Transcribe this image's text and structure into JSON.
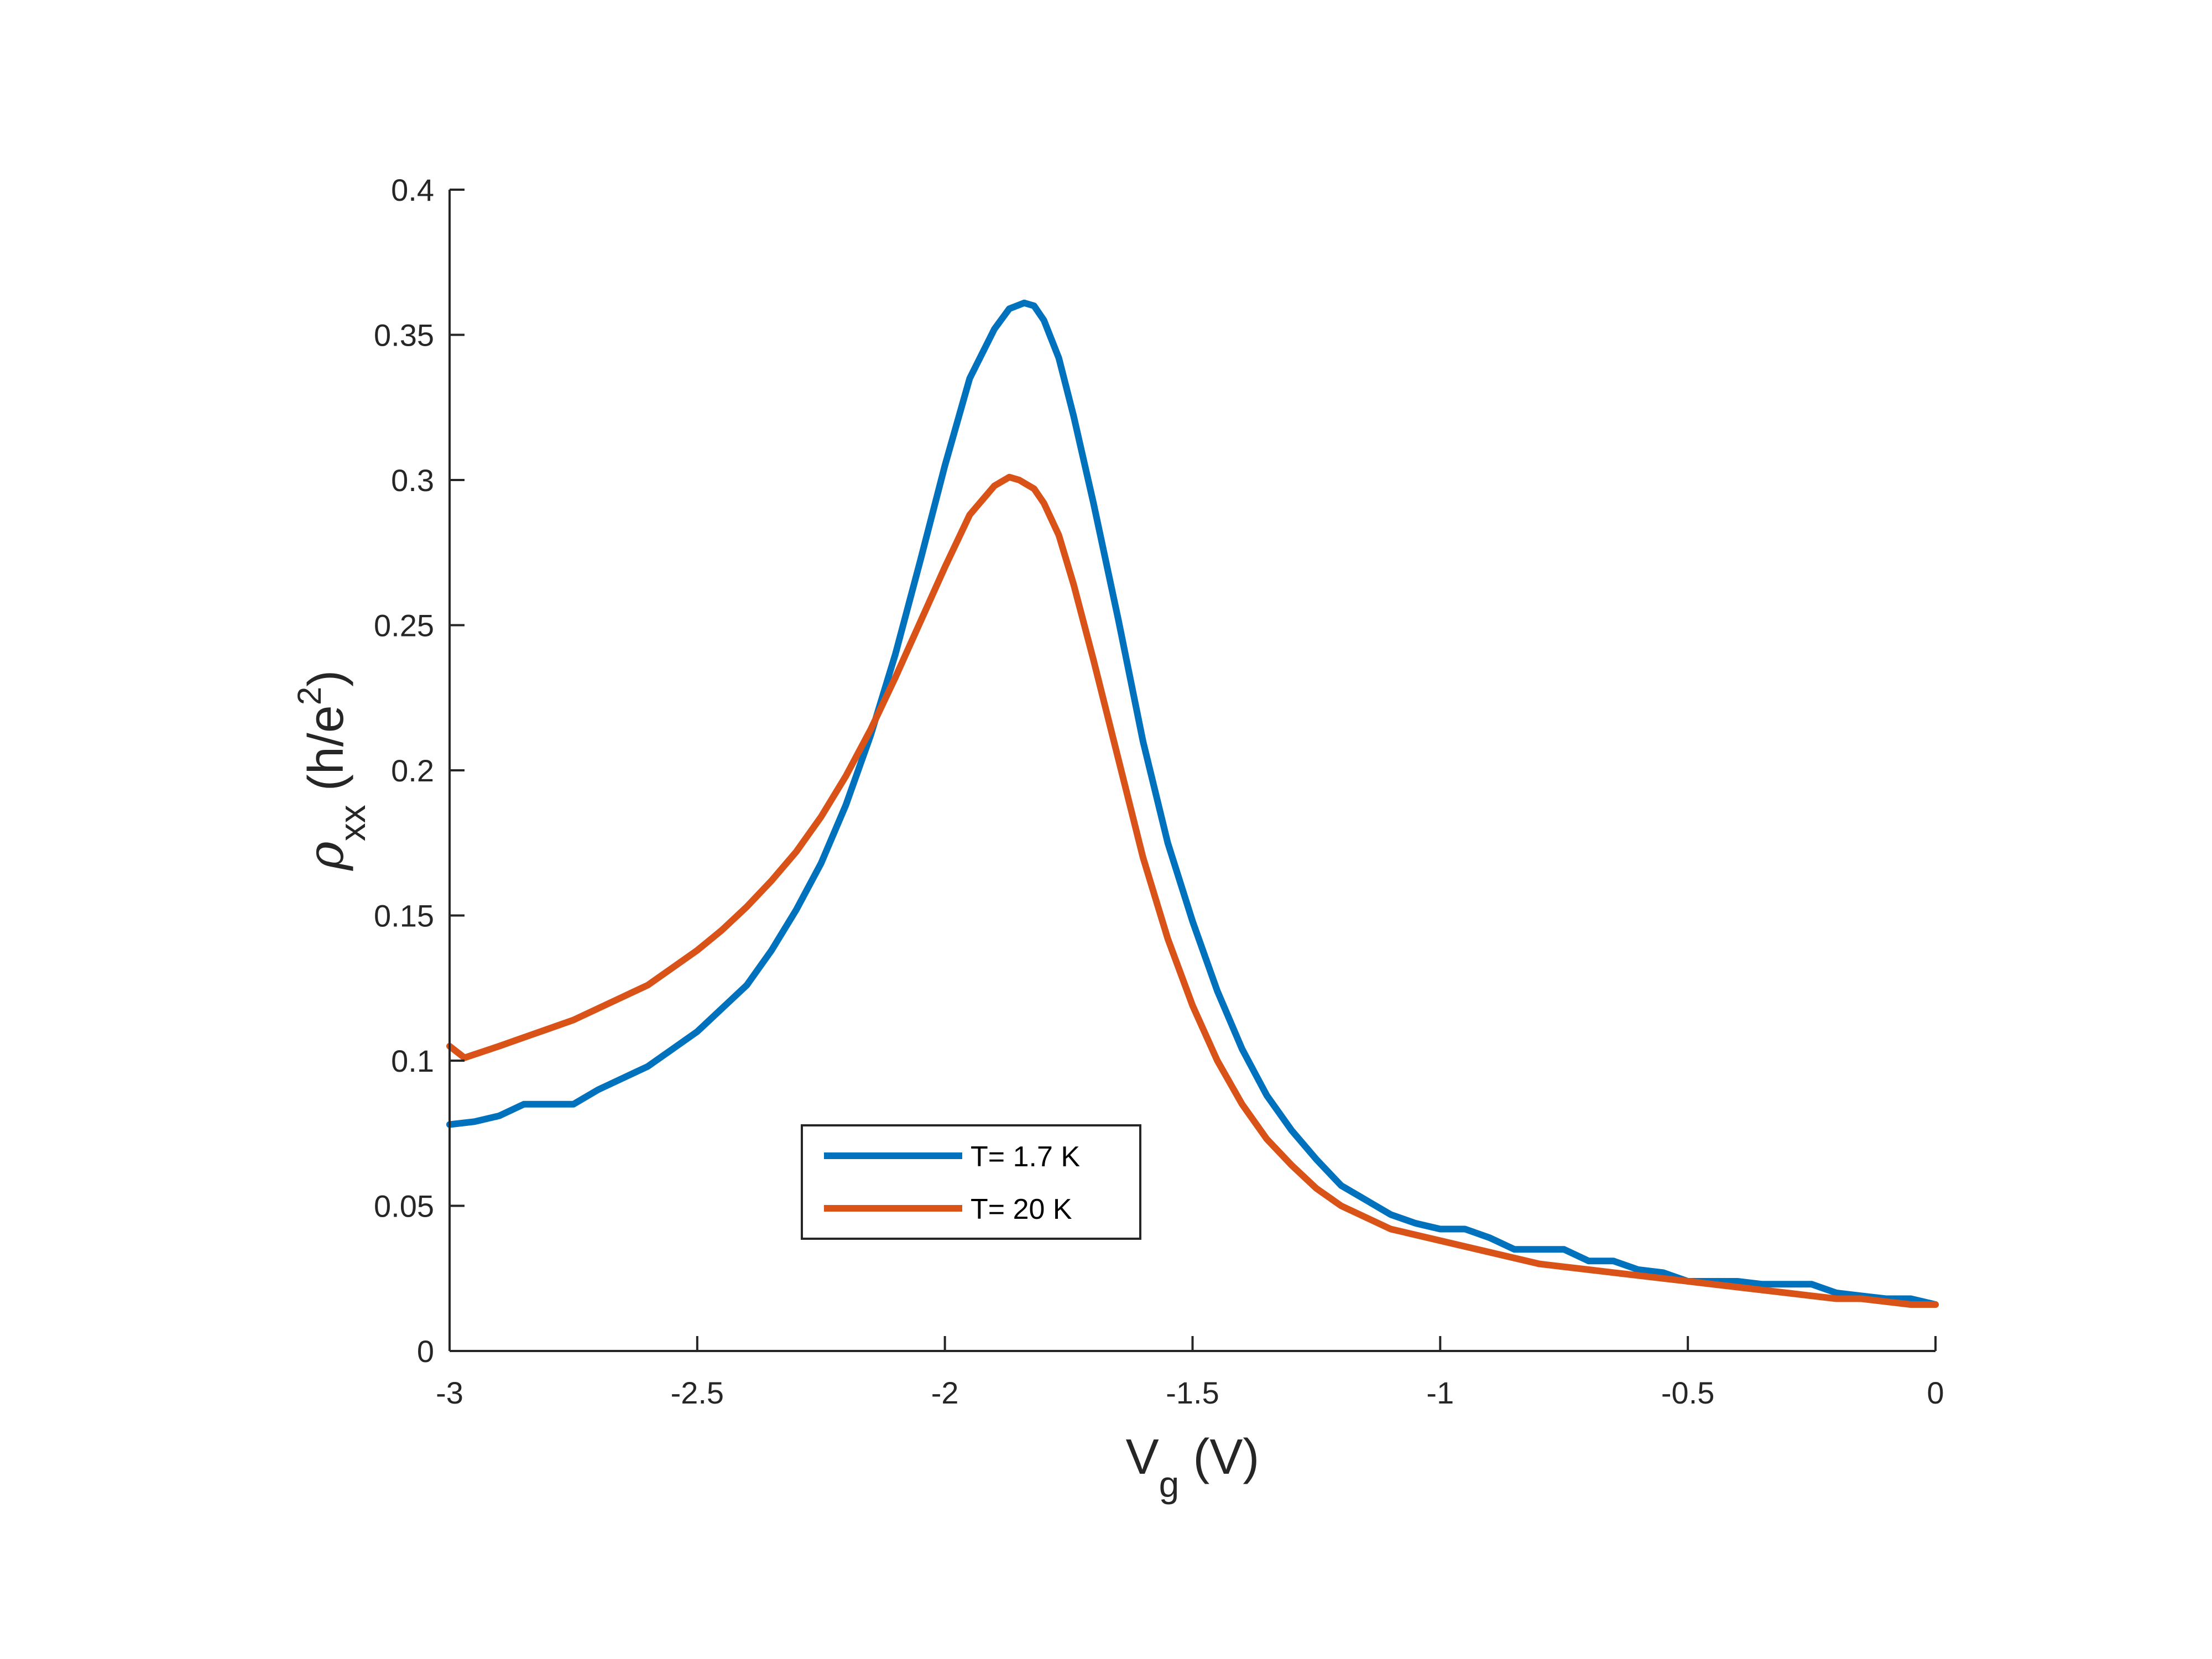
{
  "chart_data": {
    "type": "line",
    "title": "",
    "xlabel": {
      "main": "V",
      "sub": "g",
      "unit": "(V)"
    },
    "ylabel": {
      "symbol": "ρ",
      "sub": "xx",
      "unit_pre": "(h/e",
      "unit_sup": "2",
      "unit_post": ")"
    },
    "xlim": [
      -3,
      0
    ],
    "ylim": [
      0,
      0.4
    ],
    "xticks": [
      -3,
      -2.5,
      -2,
      -1.5,
      -1,
      -0.5,
      0
    ],
    "xtick_labels": [
      "-3",
      "-2.5",
      "-2",
      "-1.5",
      "-1",
      "-0.5",
      "0"
    ],
    "yticks": [
      0,
      0.05,
      0.1,
      0.15,
      0.2,
      0.25,
      0.3,
      0.35,
      0.4
    ],
    "ytick_labels": [
      "0",
      "0.05",
      "0.1",
      "0.15",
      "0.2",
      "0.25",
      "0.3",
      "0.35",
      "0.4"
    ],
    "grid": false,
    "legend_position": "inside-lower-middle",
    "series": [
      {
        "name": "T= 1.7 K",
        "color": "#0072BD",
        "x": [
          -3.0,
          -2.95,
          -2.9,
          -2.85,
          -2.8,
          -2.75,
          -2.7,
          -2.65,
          -2.6,
          -2.55,
          -2.5,
          -2.45,
          -2.4,
          -2.35,
          -2.3,
          -2.25,
          -2.2,
          -2.15,
          -2.1,
          -2.05,
          -2.0,
          -1.95,
          -1.9,
          -1.87,
          -1.84,
          -1.82,
          -1.8,
          -1.77,
          -1.74,
          -1.7,
          -1.65,
          -1.6,
          -1.55,
          -1.5,
          -1.45,
          -1.4,
          -1.35,
          -1.3,
          -1.25,
          -1.2,
          -1.15,
          -1.1,
          -1.05,
          -1.0,
          -0.95,
          -0.9,
          -0.85,
          -0.8,
          -0.75,
          -0.7,
          -0.65,
          -0.6,
          -0.55,
          -0.5,
          -0.45,
          -0.4,
          -0.35,
          -0.3,
          -0.25,
          -0.2,
          -0.15,
          -0.1,
          -0.05,
          0.0
        ],
        "y": [
          0.078,
          0.079,
          0.081,
          0.085,
          0.085,
          0.085,
          0.09,
          0.094,
          0.098,
          0.104,
          0.11,
          0.118,
          0.126,
          0.138,
          0.152,
          0.168,
          0.188,
          0.212,
          0.24,
          0.272,
          0.305,
          0.335,
          0.352,
          0.359,
          0.361,
          0.36,
          0.355,
          0.342,
          0.322,
          0.292,
          0.252,
          0.21,
          0.175,
          0.148,
          0.124,
          0.104,
          0.088,
          0.076,
          0.066,
          0.057,
          0.052,
          0.047,
          0.044,
          0.042,
          0.042,
          0.039,
          0.035,
          0.035,
          0.035,
          0.031,
          0.031,
          0.028,
          0.027,
          0.024,
          0.024,
          0.024,
          0.023,
          0.023,
          0.023,
          0.02,
          0.019,
          0.018,
          0.018,
          0.016
        ]
      },
      {
        "name": "T= 20 K",
        "color": "#D95319",
        "x": [
          -3.0,
          -2.97,
          -2.9,
          -2.85,
          -2.8,
          -2.75,
          -2.7,
          -2.65,
          -2.6,
          -2.55,
          -2.5,
          -2.45,
          -2.4,
          -2.35,
          -2.3,
          -2.25,
          -2.2,
          -2.15,
          -2.1,
          -2.05,
          -2.0,
          -1.95,
          -1.9,
          -1.87,
          -1.85,
          -1.82,
          -1.8,
          -1.77,
          -1.74,
          -1.7,
          -1.65,
          -1.6,
          -1.55,
          -1.5,
          -1.45,
          -1.4,
          -1.35,
          -1.3,
          -1.25,
          -1.2,
          -1.15,
          -1.1,
          -1.05,
          -1.0,
          -0.95,
          -0.9,
          -0.85,
          -0.8,
          -0.75,
          -0.7,
          -0.65,
          -0.6,
          -0.55,
          -0.5,
          -0.45,
          -0.4,
          -0.35,
          -0.3,
          -0.25,
          -0.2,
          -0.15,
          -0.1,
          -0.05,
          0.0
        ],
        "y": [
          0.105,
          0.101,
          0.105,
          0.108,
          0.111,
          0.114,
          0.118,
          0.122,
          0.126,
          0.132,
          0.138,
          0.145,
          0.153,
          0.162,
          0.172,
          0.184,
          0.198,
          0.214,
          0.232,
          0.251,
          0.27,
          0.288,
          0.298,
          0.301,
          0.3,
          0.297,
          0.292,
          0.281,
          0.264,
          0.238,
          0.204,
          0.17,
          0.142,
          0.119,
          0.1,
          0.085,
          0.073,
          0.064,
          0.056,
          0.05,
          0.046,
          0.042,
          0.04,
          0.038,
          0.036,
          0.034,
          0.032,
          0.03,
          0.029,
          0.028,
          0.027,
          0.026,
          0.025,
          0.024,
          0.023,
          0.022,
          0.021,
          0.02,
          0.019,
          0.018,
          0.018,
          0.017,
          0.016,
          0.016
        ]
      }
    ]
  }
}
